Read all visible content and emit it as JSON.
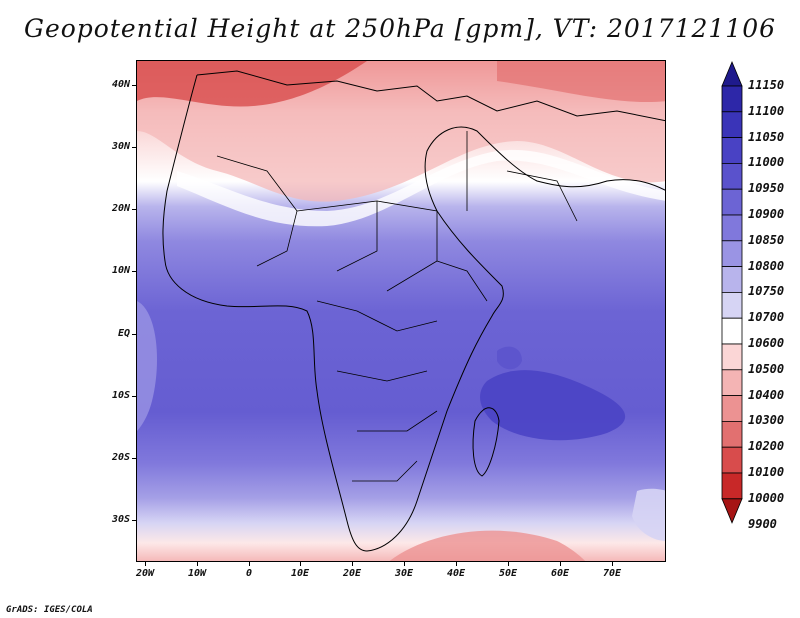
{
  "title": "Geopotential Height at 250hPa [gpm], VT: 2017121106",
  "credit": "GrADS: IGES/COLA",
  "map": {
    "lat_labels": [
      "40N",
      "30N",
      "20N",
      "10N",
      "EQ",
      "10S",
      "20S",
      "30S"
    ],
    "lon_labels": [
      "20W",
      "10W",
      "0",
      "10E",
      "20E",
      "30E",
      "40E",
      "50E",
      "60E",
      "70E"
    ]
  },
  "colorbar": {
    "levels": [
      "11150",
      "11100",
      "11050",
      "11000",
      "10950",
      "10900",
      "10850",
      "10800",
      "10750",
      "10700",
      "10600",
      "10500",
      "10400",
      "10300",
      "10200",
      "10100",
      "10000",
      "9900"
    ],
    "colors": [
      "#1f1a8c",
      "#2d27a8",
      "#3a34b8",
      "#4942c4",
      "#5a52cc",
      "#6c64d4",
      "#8078dc",
      "#9a94e4",
      "#b8b4ec",
      "#d6d4f4",
      "#ffffff",
      "#fbd6d6",
      "#f4b4b4",
      "#ec9292",
      "#e27070",
      "#d84c4c",
      "#c82828",
      "#a61414"
    ]
  }
}
